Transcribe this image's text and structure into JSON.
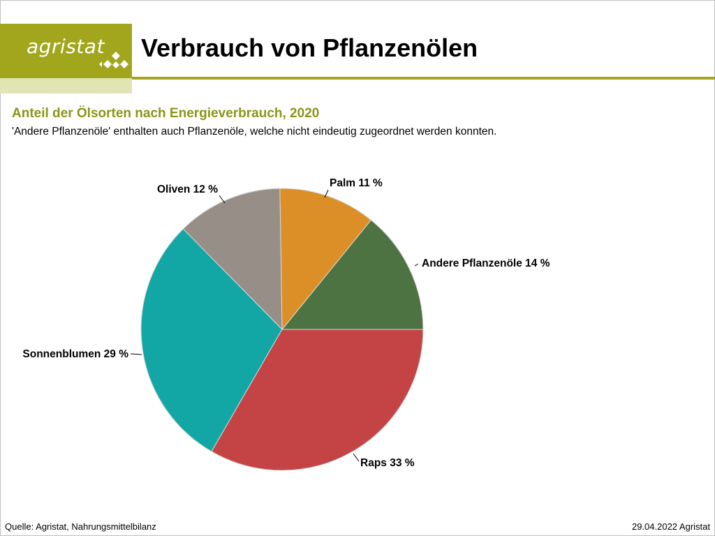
{
  "header": {
    "logo_text": "agristat",
    "title": "Verbrauch von Pflanzenölen"
  },
  "colors": {
    "brand": "#a1a61c",
    "brand_light": "#e1e4b3",
    "subtitle": "#8c9516"
  },
  "chart_data": {
    "type": "pie",
    "title": "Anteil der Ölsorten nach Energieverbrauch, 2020",
    "subtitle": "'Andere Pflanzenöle' enthalten auch Pflanzenöle, welche nicht eindeutig zugeordnet werden konnten.",
    "unit": "%",
    "slices": [
      {
        "name": "Andere Pflanzenöle",
        "value": 14,
        "label": "Andere Pflanzenöle 14 %",
        "color": "#4e7343"
      },
      {
        "name": "Palm",
        "value": 11,
        "label": "Palm 11 %",
        "color": "#db8f26"
      },
      {
        "name": "Oliven",
        "value": 12,
        "label": "Oliven 12 %",
        "color": "#978e88"
      },
      {
        "name": "Sonnenblumen",
        "value": 29,
        "label": "Sonnenblumen 29 %",
        "color": "#12a7a5"
      },
      {
        "name": "Raps",
        "value": 33,
        "label": "Raps 33 %",
        "color": "#c44445"
      }
    ]
  },
  "footer": {
    "source": "Quelle: Agristat, Nahrungsmittelbilanz",
    "date": "29.04.2022 Agristat"
  }
}
